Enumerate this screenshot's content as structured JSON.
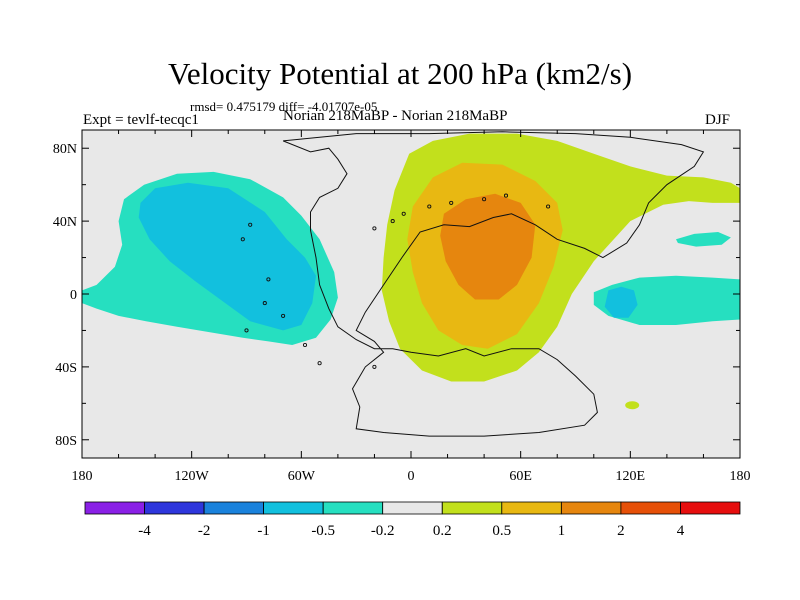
{
  "chart_data": {
    "type": "contour-map",
    "title": "Velocity Potential at 200 hPa (km2/s)",
    "subtitle": "rmsd= 0.475179 diff= -4.01707e-05",
    "left_label": "Expt = tevlf-tecqc1",
    "center_label": "Norian 218MaBP - Norian 218MaBP",
    "right_label": "DJF",
    "lon_range": [
      -180,
      180
    ],
    "lat_range": [
      -90,
      90
    ],
    "x_ticks": [
      {
        "value": -180,
        "label": "180"
      },
      {
        "value": -120,
        "label": "120W"
      },
      {
        "value": -60,
        "label": "60W"
      },
      {
        "value": 0,
        "label": "0"
      },
      {
        "value": 60,
        "label": "60E"
      },
      {
        "value": 120,
        "label": "120E"
      },
      {
        "value": 180,
        "label": "180"
      }
    ],
    "y_ticks": [
      {
        "value": 80,
        "label": "80N"
      },
      {
        "value": 40,
        "label": "40N"
      },
      {
        "value": 0,
        "label": "0"
      },
      {
        "value": -40,
        "label": "40S"
      },
      {
        "value": -80,
        "label": "80S"
      }
    ],
    "colorbar": {
      "levels": [
        "-4",
        "-2",
        "-1",
        "-0.5",
        "-0.2",
        "0.2",
        "0.5",
        "1",
        "2",
        "4"
      ],
      "colors": [
        "#8a20e6",
        "#2e36dc",
        "#1a82dc",
        "#12c0de",
        "#26dfc0",
        "#e8e8e8",
        "#c2e01c",
        "#e8b812",
        "#e6860e",
        "#e65008",
        "#e60e0e"
      ]
    },
    "regions": [
      {
        "name": "negative-pacific-outer",
        "level": "-0.5 to -0.2",
        "color": "#26dfc0"
      },
      {
        "name": "negative-pacific-inner",
        "level": "-1 to -0.5",
        "color": "#12c0de"
      },
      {
        "name": "positive-pangaea-outer",
        "level": "0.2 to 0.5",
        "color": "#c2e01c"
      },
      {
        "name": "positive-pangaea-middle",
        "level": "0.5 to 1",
        "color": "#e8b812"
      },
      {
        "name": "positive-pangaea-inner",
        "level": "1 to 2",
        "color": "#e6860e"
      },
      {
        "name": "negative-east-equatorial",
        "level": "-0.5 to -0.2",
        "color": "#26dfc0"
      },
      {
        "name": "negative-east-equatorial-core",
        "level": "-1 to -0.5",
        "color": "#12c0de"
      },
      {
        "name": "negative-east-north-blob",
        "level": "-0.5 to -0.2",
        "color": "#26dfc0"
      }
    ]
  }
}
